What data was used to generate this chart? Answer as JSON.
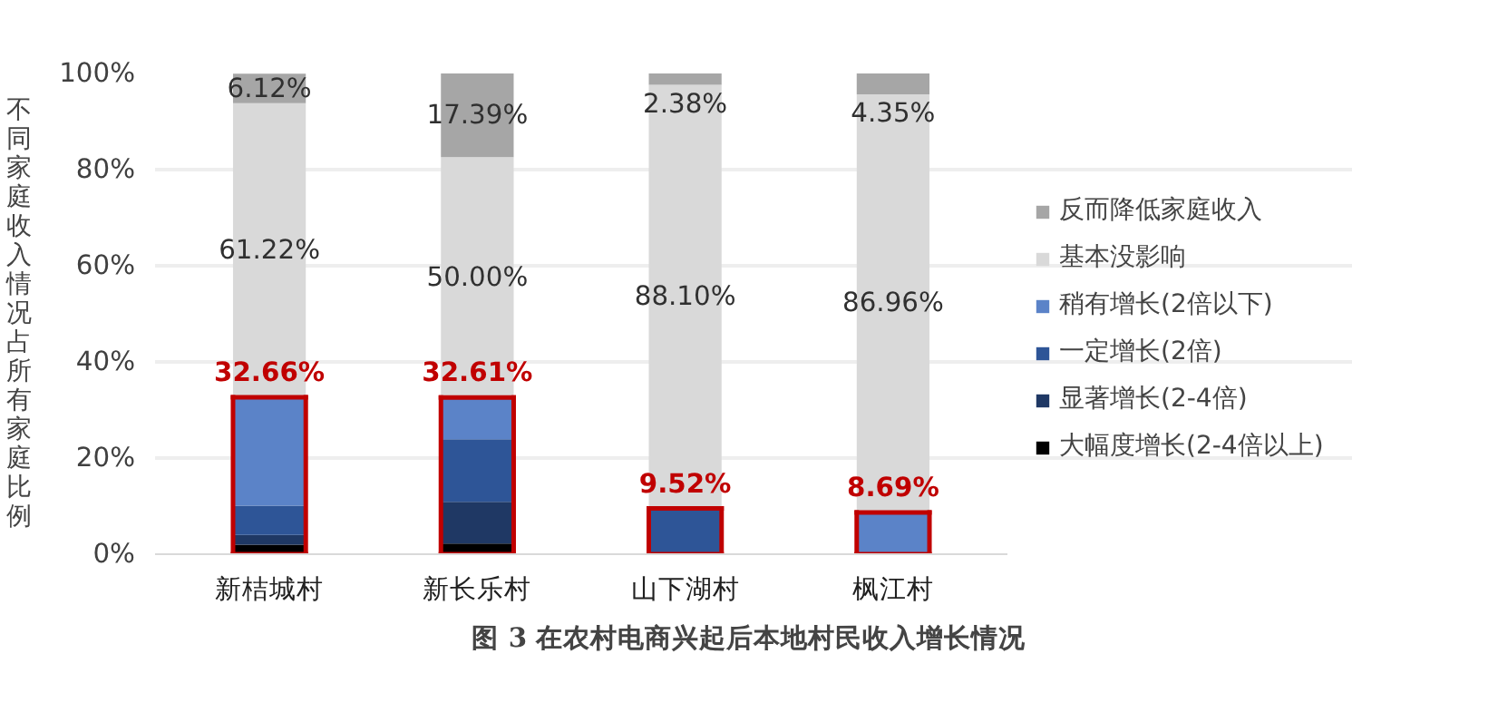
{
  "chart_data": {
    "type": "bar",
    "stacked": true,
    "title": "图 3  在农村电商兴起后本地村民收入增长情况",
    "ylabel": "不同家庭收入情况占所有家庭比例",
    "categories": [
      "新桔城村",
      "新长乐村",
      "山下湖村",
      "枫江村"
    ],
    "series": [
      {
        "name": "大幅度增长(2-4倍以上)",
        "color": "#000000",
        "values": [
          2.0,
          2.2,
          0,
          0
        ]
      },
      {
        "name": "显著增长(2-4倍)",
        "color": "#1f3864",
        "values": [
          2.0,
          8.7,
          0,
          0
        ]
      },
      {
        "name": "一定增长(2倍)",
        "color": "#2e5597",
        "values": [
          6.1,
          13.0,
          9.52,
          0
        ]
      },
      {
        "name": "稍有增长(2倍以下)",
        "color": "#5b83c8",
        "values": [
          22.5,
          8.7,
          0,
          8.69
        ]
      },
      {
        "name": "基本没影响",
        "color": "#d9d9d9",
        "values": [
          61.22,
          50.0,
          88.1,
          86.96
        ],
        "value_labels": [
          "61.22%",
          "50.00%",
          "88.10%",
          "86.96%"
        ]
      },
      {
        "name": "反而降低家庭收入",
        "color": "#a6a6a6",
        "values": [
          6.12,
          17.39,
          2.38,
          4.35
        ],
        "value_labels": [
          "6.12%",
          "17.39%",
          "2.38%",
          "4.35%"
        ]
      }
    ],
    "annotations": [
      {
        "text": "32.66%",
        "x": "新桔城村",
        "y": 32.66
      },
      {
        "text": "32.61%",
        "x": "新长乐村",
        "y": 32.61
      },
      {
        "text": "9.52%",
        "x": "山下湖村",
        "y": 9.52
      },
      {
        "text": "8.69%",
        "x": "枫江村",
        "y": 8.69
      }
    ],
    "ylim": [
      0,
      100
    ],
    "yticks": [
      {
        "value": 0,
        "label": "0%"
      },
      {
        "value": 20,
        "label": "20%"
      },
      {
        "value": 40,
        "label": "40%"
      },
      {
        "value": 60,
        "label": "60%"
      },
      {
        "value": 80,
        "label": "80%"
      },
      {
        "value": 100,
        "label": "100%"
      }
    ],
    "grid": "y",
    "legend": "right"
  }
}
